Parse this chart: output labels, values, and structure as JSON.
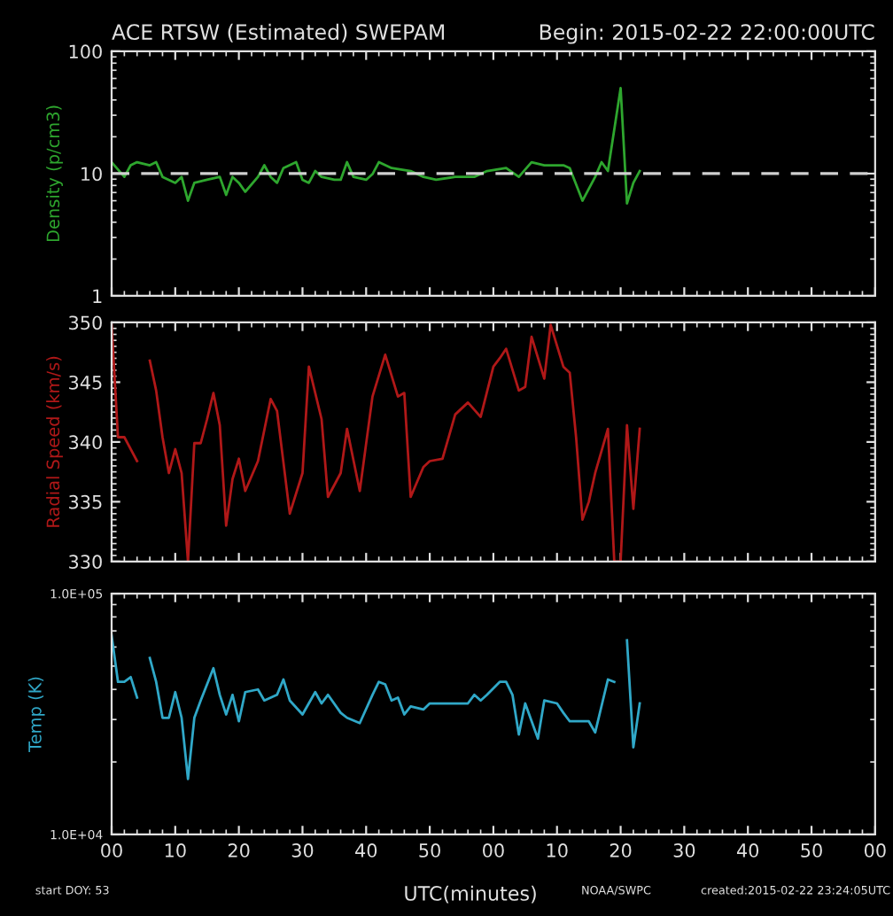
{
  "chart_data": [
    {
      "type": "line",
      "title": "ACE RTSW (Estimated) SWEPAM",
      "subtitle": "Begin: 2015-02-22 22:00:00UTC",
      "ylabel": "Density (p/cm3)",
      "log": "y",
      "ylim": [
        1,
        100
      ],
      "yticks": [
        1,
        10,
        100
      ],
      "xlim": [
        "2015-02-22T22:00",
        "2015-02-23T00:00"
      ],
      "xticks": [
        {
          "value": "2015-02-22T22:00",
          "label": null
        },
        {
          "value": "2015-02-22T22:10",
          "label": null
        },
        {
          "value": "2015-02-22T22:20",
          "label": null
        },
        {
          "value": "2015-02-22T22:30",
          "label": null
        },
        {
          "value": "2015-02-22T22:40",
          "label": null
        },
        {
          "value": "2015-02-22T22:50",
          "label": null
        },
        {
          "value": "2015-02-22T23:00",
          "label": null
        },
        {
          "value": "2015-02-22T23:10",
          "label": null
        },
        {
          "value": "2015-02-22T23:20",
          "label": null
        },
        {
          "value": "2015-02-22T23:30",
          "label": null
        },
        {
          "value": "2015-02-22T23:40",
          "label": null
        },
        {
          "value": "2015-02-22T23:50",
          "label": null
        },
        {
          "value": "2015-02-23T00:00",
          "label": null
        }
      ],
      "tick_labels": "y",
      "ref_lines": [
        {
          "axis": "y",
          "value": 10,
          "color": "#d0d0d0",
          "line_style": "dashed"
        }
      ],
      "x": [
        "2015-02-22T22:00",
        "2015-02-22T22:02",
        "2015-02-22T22:03",
        "2015-02-22T22:04",
        "2015-02-22T22:06",
        "2015-02-22T22:07",
        "2015-02-22T22:08",
        "2015-02-22T22:10",
        "2015-02-22T22:11",
        "2015-02-22T22:12",
        "2015-02-22T22:13",
        "2015-02-22T22:15",
        "2015-02-22T22:17",
        "2015-02-22T22:18",
        "2015-02-22T22:19",
        "2015-02-22T22:20",
        "2015-02-22T22:21",
        "2015-02-22T22:23",
        "2015-02-22T22:24",
        "2015-02-22T22:25",
        "2015-02-22T22:26",
        "2015-02-22T22:27",
        "2015-02-22T22:29",
        "2015-02-22T22:30",
        "2015-02-22T22:31",
        "2015-02-22T22:32",
        "2015-02-22T22:33",
        "2015-02-22T22:35",
        "2015-02-22T22:36",
        "2015-02-22T22:37",
        "2015-02-22T22:38",
        "2015-02-22T22:40",
        "2015-02-22T22:41",
        "2015-02-22T22:42",
        "2015-02-22T22:44",
        "2015-02-22T22:47",
        "2015-02-22T22:49",
        "2015-02-22T22:51",
        "2015-02-22T22:54",
        "2015-02-22T22:57",
        "2015-02-22T22:59",
        "2015-02-22T23:02",
        "2015-02-22T23:04",
        "2015-02-22T23:06",
        "2015-02-22T23:08",
        "2015-02-22T23:11",
        "2015-02-22T23:12",
        "2015-02-22T23:14",
        "2015-02-22T23:16",
        "2015-02-22T23:17",
        "2015-02-22T23:18",
        "2015-02-22T23:20",
        "2015-02-22T23:21",
        "2015-02-22T23:22",
        "2015-02-22T23:23"
      ],
      "series": [
        {
          "color": "#2ea62e",
          "values": [
            12.4,
            9.4,
            11.7,
            12.4,
            11.7,
            12.4,
            9.4,
            8.4,
            9.4,
            6.0,
            8.4,
            8.9,
            9.4,
            6.7,
            9.4,
            8.4,
            7.1,
            9.4,
            11.7,
            9.4,
            8.4,
            11.1,
            12.4,
            8.9,
            8.4,
            10.5,
            9.4,
            8.9,
            8.9,
            12.4,
            9.4,
            8.9,
            9.9,
            12.4,
            11.1,
            10.5,
            9.4,
            8.9,
            9.4,
            9.4,
            10.5,
            11.1,
            9.4,
            12.4,
            11.7,
            11.7,
            11.1,
            6.0,
            9.4,
            12.4,
            10.5,
            50,
            5.7,
            8.4,
            10.5
          ]
        }
      ]
    },
    {
      "type": "line",
      "ylabel": "Radial Speed (km/s)",
      "ylim": [
        330,
        350
      ],
      "yticks": [
        330,
        335,
        340,
        345,
        350
      ],
      "xlim": [
        "2015-02-22T22:00",
        "2015-02-23T00:00"
      ],
      "xticks": [
        {
          "value": "2015-02-22T22:00",
          "label": null
        },
        {
          "value": "2015-02-22T22:10",
          "label": null
        },
        {
          "value": "2015-02-22T22:20",
          "label": null
        },
        {
          "value": "2015-02-22T22:30",
          "label": null
        },
        {
          "value": "2015-02-22T22:40",
          "label": null
        },
        {
          "value": "2015-02-22T22:50",
          "label": null
        },
        {
          "value": "2015-02-22T23:00",
          "label": null
        },
        {
          "value": "2015-02-22T23:10",
          "label": null
        },
        {
          "value": "2015-02-22T23:20",
          "label": null
        },
        {
          "value": "2015-02-22T23:30",
          "label": null
        },
        {
          "value": "2015-02-22T23:40",
          "label": null
        },
        {
          "value": "2015-02-22T23:50",
          "label": null
        },
        {
          "value": "2015-02-23T00:00",
          "label": null
        }
      ],
      "tick_labels": "y",
      "x": [
        "2015-02-22T22:00",
        "2015-02-22T22:01",
        "2015-02-22T22:02",
        "2015-02-22T22:04",
        "2015-02-22T22:05",
        "2015-02-22T22:06",
        "2015-02-22T22:07",
        "2015-02-22T22:08",
        "2015-02-22T22:09",
        "2015-02-22T22:10",
        "2015-02-22T22:11",
        "2015-02-22T22:12",
        "2015-02-22T22:13",
        "2015-02-22T22:14",
        "2015-02-22T22:15",
        "2015-02-22T22:16",
        "2015-02-22T22:17",
        "2015-02-22T22:18",
        "2015-02-22T22:19",
        "2015-02-22T22:20",
        "2015-02-22T22:21",
        "2015-02-22T22:23",
        "2015-02-22T22:25",
        "2015-02-22T22:26",
        "2015-02-22T22:28",
        "2015-02-22T22:30",
        "2015-02-22T22:31",
        "2015-02-22T22:33",
        "2015-02-22T22:34",
        "2015-02-22T22:36",
        "2015-02-22T22:37",
        "2015-02-22T22:39",
        "2015-02-22T22:41",
        "2015-02-22T22:43",
        "2015-02-22T22:45",
        "2015-02-22T22:46",
        "2015-02-22T22:47",
        "2015-02-22T22:49",
        "2015-02-22T22:50",
        "2015-02-22T22:52",
        "2015-02-22T22:54",
        "2015-02-22T22:56",
        "2015-02-22T22:58",
        "2015-02-22T23:00",
        "2015-02-22T23:01",
        "2015-02-22T23:02",
        "2015-02-22T23:04",
        "2015-02-22T23:05",
        "2015-02-22T23:06",
        "2015-02-22T23:08",
        "2015-02-22T23:09",
        "2015-02-22T23:11",
        "2015-02-22T23:12",
        "2015-02-22T23:13",
        "2015-02-22T23:14",
        "2015-02-22T23:15",
        "2015-02-22T23:16",
        "2015-02-22T23:18",
        "2015-02-22T23:19",
        "2015-02-22T23:20",
        "2015-02-22T23:21",
        "2015-02-22T23:22",
        "2015-02-22T23:23"
      ],
      "series": [
        {
          "color": "#b01818",
          "values": [
            349.8,
            340.4,
            340.4,
            338.4,
            null,
            346.8,
            344.3,
            340.4,
            337.4,
            339.4,
            337.4,
            330,
            339.9,
            339.9,
            341.9,
            344.1,
            341.4,
            333,
            336.9,
            338.6,
            335.9,
            338.4,
            343.6,
            342.6,
            334,
            337.4,
            346.3,
            341.9,
            335.4,
            337.4,
            341.1,
            335.9,
            343.8,
            347.3,
            343.8,
            344.1,
            335.4,
            337.9,
            338.4,
            338.6,
            342.3,
            343.3,
            342.1,
            346.3,
            347,
            347.8,
            344.3,
            344.6,
            348.8,
            345.3,
            349.8,
            346.3,
            345.8,
            340.4,
            333.5,
            335,
            337.4,
            341.1,
            330,
            330,
            341.4,
            334.4,
            341.1
          ]
        }
      ]
    },
    {
      "type": "line",
      "ylabel": "Temp (K)",
      "xlabel": "UTC(minutes)",
      "log": "y",
      "ylim": [
        10000,
        100000
      ],
      "yticks": [
        {
          "value": 10000,
          "label": "1.0E+04"
        },
        {
          "value": 100000,
          "label": "1.0E+05"
        }
      ],
      "xlim": [
        "2015-02-22T22:00",
        "2015-02-23T00:00"
      ],
      "xticks": [
        {
          "value": "2015-02-22T22:00",
          "label": "00"
        },
        {
          "value": "2015-02-22T22:10",
          "label": "10"
        },
        {
          "value": "2015-02-22T22:20",
          "label": "20"
        },
        {
          "value": "2015-02-22T22:30",
          "label": "30"
        },
        {
          "value": "2015-02-22T22:40",
          "label": "40"
        },
        {
          "value": "2015-02-22T22:50",
          "label": "50"
        },
        {
          "value": "2015-02-22T23:00",
          "label": "00"
        },
        {
          "value": "2015-02-22T23:10",
          "label": "10"
        },
        {
          "value": "2015-02-22T23:20",
          "label": "20"
        },
        {
          "value": "2015-02-22T23:30",
          "label": "30"
        },
        {
          "value": "2015-02-22T23:40",
          "label": "40"
        },
        {
          "value": "2015-02-22T23:50",
          "label": "50"
        },
        {
          "value": "2015-02-23T00:00",
          "label": "00"
        }
      ],
      "annotations": [
        "start DOY: 53",
        "NOAA/SWPC",
        "created:2015-02-22 23:24:05UTC"
      ],
      "x": [
        "2015-02-22T22:00",
        "2015-02-22T22:01",
        "2015-02-22T22:02",
        "2015-02-22T22:03",
        "2015-02-22T22:04",
        "2015-02-22T22:05",
        "2015-02-22T22:06",
        "2015-02-22T22:07",
        "2015-02-22T22:08",
        "2015-02-22T22:09",
        "2015-02-22T22:10",
        "2015-02-22T22:11",
        "2015-02-22T22:12",
        "2015-02-22T22:13",
        "2015-02-22T22:14",
        "2015-02-22T22:16",
        "2015-02-22T22:17",
        "2015-02-22T22:18",
        "2015-02-22T22:19",
        "2015-02-22T22:20",
        "2015-02-22T22:21",
        "2015-02-22T22:23",
        "2015-02-22T22:24",
        "2015-02-22T22:26",
        "2015-02-22T22:27",
        "2015-02-22T22:28",
        "2015-02-22T22:30",
        "2015-02-22T22:32",
        "2015-02-22T22:33",
        "2015-02-22T22:34",
        "2015-02-22T22:36",
        "2015-02-22T22:37",
        "2015-02-22T22:39",
        "2015-02-22T22:41",
        "2015-02-22T22:42",
        "2015-02-22T22:43",
        "2015-02-22T22:44",
        "2015-02-22T22:45",
        "2015-02-22T22:46",
        "2015-02-22T22:47",
        "2015-02-22T22:49",
        "2015-02-22T22:50",
        "2015-02-22T22:53",
        "2015-02-22T22:56",
        "2015-02-22T22:57",
        "2015-02-22T22:58",
        "2015-02-22T22:59",
        "2015-02-22T23:01",
        "2015-02-22T23:02",
        "2015-02-22T23:03",
        "2015-02-22T23:04",
        "2015-02-22T23:05",
        "2015-02-22T23:07",
        "2015-02-22T23:08",
        "2015-02-22T23:10",
        "2015-02-22T23:11",
        "2015-02-22T23:12",
        "2015-02-22T23:15",
        "2015-02-22T23:16",
        "2015-02-22T23:18",
        "2015-02-22T23:19",
        "2015-02-22T23:20",
        "2015-02-22T23:21",
        "2015-02-22T23:22",
        "2015-02-22T23:23"
      ],
      "series": [
        {
          "color": "#30a8c8",
          "values": [
            67000,
            43000,
            43000,
            45000,
            37000,
            null,
            54000,
            43000,
            30500,
            30500,
            39000,
            30500,
            17000,
            30500,
            36000,
            49000,
            38000,
            31500,
            38000,
            29500,
            39000,
            40000,
            36000,
            38000,
            44000,
            36000,
            31500,
            39000,
            35000,
            38000,
            32000,
            30500,
            29000,
            38000,
            43000,
            42000,
            36000,
            37000,
            31500,
            34000,
            33000,
            35000,
            35000,
            35000,
            38000,
            36000,
            38000,
            43000,
            43000,
            38000,
            26000,
            35000,
            25000,
            36000,
            35000,
            32000,
            29500,
            29500,
            26500,
            44000,
            43000,
            null,
            64000,
            23000,
            35000
          ]
        }
      ]
    }
  ]
}
